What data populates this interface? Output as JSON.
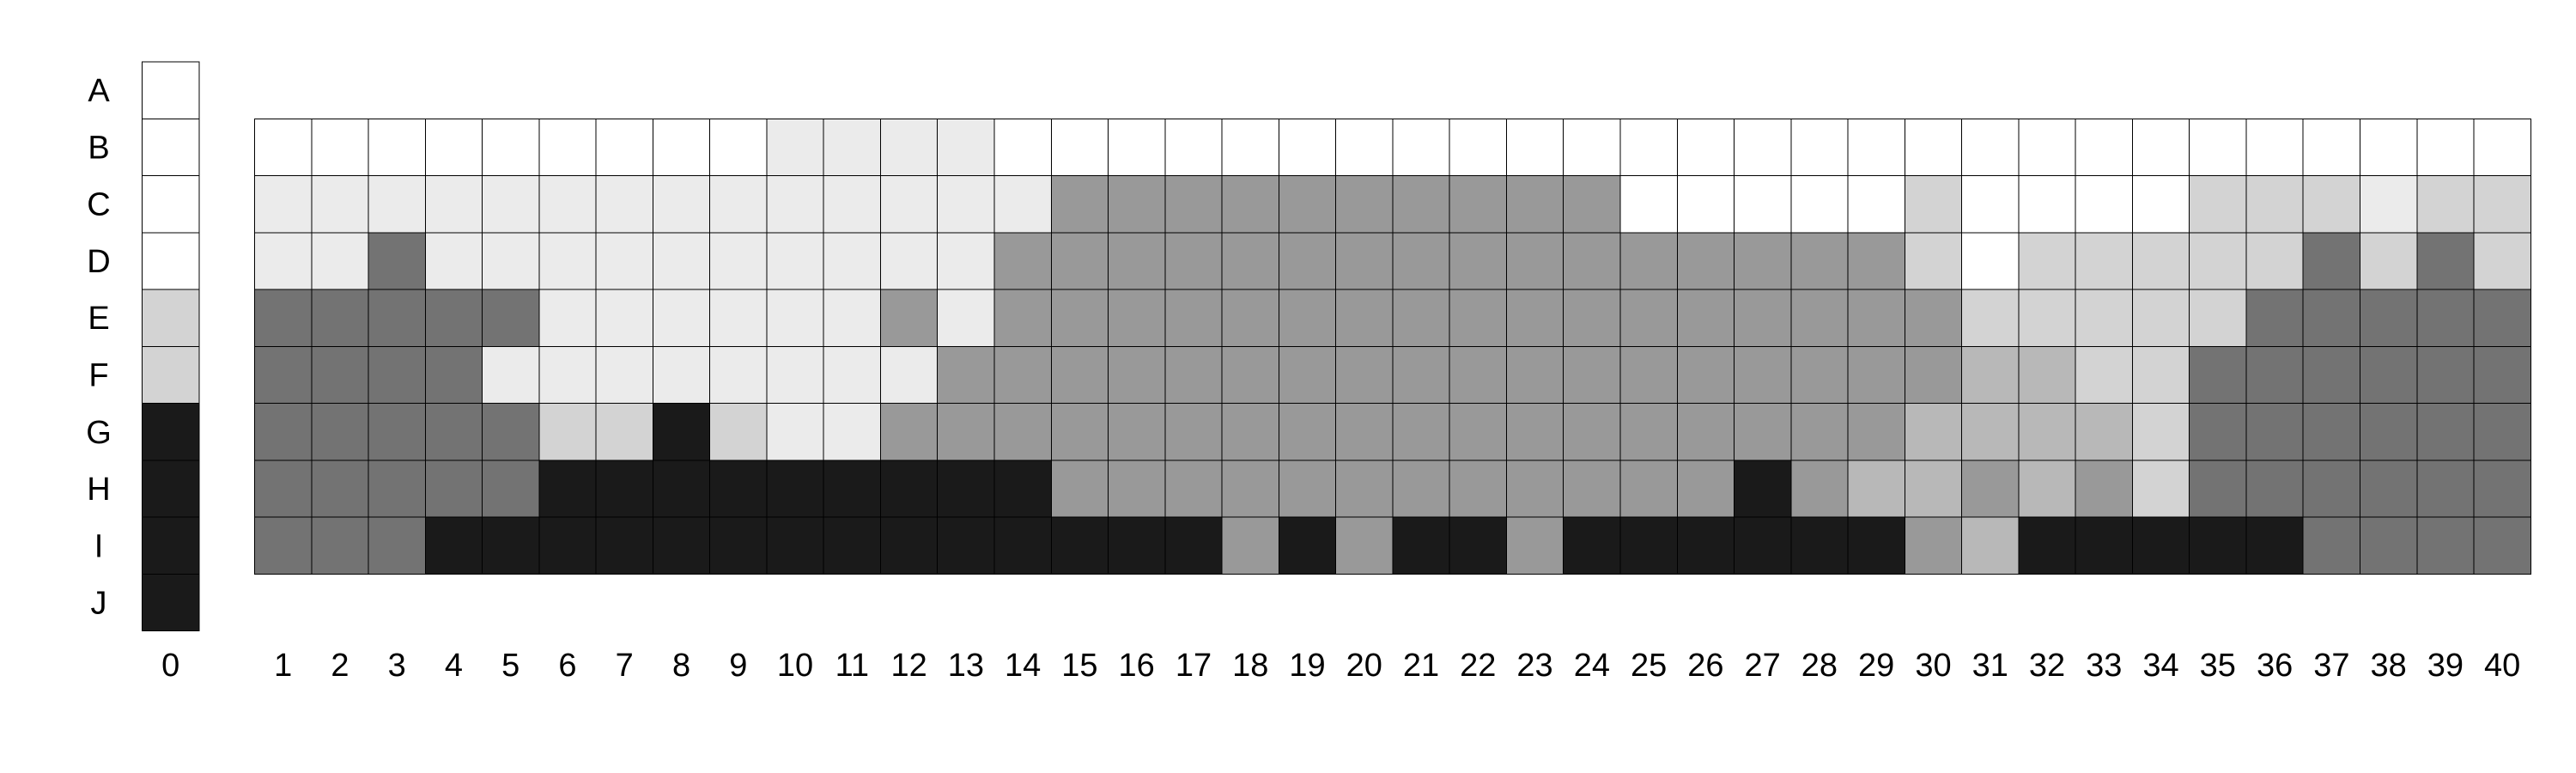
{
  "chart_data": {
    "type": "heatmap",
    "title": "",
    "row_labels": [
      "A",
      "B",
      "C",
      "D",
      "E",
      "F",
      "G",
      "H",
      "I",
      "J"
    ],
    "reference_column": {
      "label": "0",
      "values": [
        0,
        0,
        0,
        0,
        2,
        2,
        5,
        5,
        5,
        5
      ]
    },
    "column_labels": [
      "1",
      "2",
      "3",
      "4",
      "5",
      "6",
      "7",
      "8",
      "9",
      "10",
      "11",
      "12",
      "13",
      "14",
      "15",
      "16",
      "17",
      "18",
      "19",
      "20",
      "21",
      "22",
      "23",
      "24",
      "25",
      "26",
      "27",
      "28",
      "29",
      "30",
      "31",
      "32",
      "33",
      "34",
      "35",
      "36",
      "37",
      "38",
      "39",
      "40"
    ],
    "grid_rows": [
      "B",
      "C",
      "D",
      "E",
      "F",
      "G",
      "H",
      "I"
    ],
    "grid_values": [
      [
        0,
        0,
        0,
        0,
        0,
        0,
        0,
        0,
        0,
        1,
        1,
        1,
        1,
        0,
        0,
        0,
        0,
        0,
        0,
        0,
        0,
        0,
        0,
        0,
        0,
        0,
        0,
        0,
        0,
        0,
        0,
        0,
        0,
        0,
        0,
        0,
        0,
        0,
        0,
        0
      ],
      [
        1,
        1,
        1,
        1,
        1,
        1,
        1,
        1,
        1,
        1,
        1,
        1,
        1,
        1,
        3,
        3,
        3,
        3,
        3,
        3,
        3,
        3,
        3,
        3,
        0,
        0,
        0,
        0,
        0,
        2,
        0,
        0,
        0,
        0,
        2,
        2,
        2,
        1,
        2,
        2
      ],
      [
        1,
        1,
        4,
        1,
        1,
        1,
        1,
        1,
        1,
        1,
        1,
        1,
        1,
        3,
        3,
        3,
        3,
        3,
        3,
        3,
        3,
        3,
        3,
        3,
        3,
        3,
        3,
        3,
        3,
        2,
        0,
        2,
        2,
        2,
        2,
        2,
        4,
        2,
        4,
        2
      ],
      [
        4,
        4,
        4,
        4,
        4,
        1,
        1,
        1,
        1,
        1,
        1,
        3,
        1,
        3,
        3,
        3,
        3,
        3,
        3,
        3,
        3,
        3,
        3,
        3,
        3,
        3,
        3,
        3,
        3,
        3,
        2,
        2,
        2,
        2,
        2,
        4,
        4,
        4,
        4,
        4
      ],
      [
        4,
        4,
        4,
        4,
        1,
        1,
        1,
        1,
        1,
        1,
        1,
        1,
        3,
        3,
        3,
        3,
        3,
        3,
        3,
        3,
        3,
        3,
        3,
        3,
        3,
        3,
        3,
        3,
        3,
        3,
        6,
        6,
        2,
        2,
        4,
        4,
        4,
        4,
        4,
        4
      ],
      [
        4,
        4,
        4,
        4,
        4,
        2,
        2,
        5,
        2,
        1,
        1,
        3,
        3,
        3,
        3,
        3,
        3,
        3,
        3,
        3,
        3,
        3,
        3,
        3,
        3,
        3,
        3,
        3,
        3,
        6,
        6,
        6,
        6,
        2,
        4,
        4,
        4,
        4,
        4,
        4
      ],
      [
        4,
        4,
        4,
        4,
        4,
        5,
        5,
        5,
        5,
        5,
        5,
        5,
        5,
        5,
        3,
        3,
        3,
        3,
        3,
        3,
        3,
        3,
        3,
        3,
        3,
        3,
        5,
        3,
        6,
        6,
        3,
        6,
        3,
        2,
        4,
        4,
        4,
        4,
        4,
        4
      ],
      [
        4,
        4,
        4,
        5,
        5,
        5,
        5,
        5,
        5,
        5,
        5,
        5,
        5,
        5,
        5,
        5,
        5,
        3,
        5,
        3,
        5,
        5,
        3,
        5,
        5,
        5,
        5,
        5,
        5,
        3,
        6,
        5,
        5,
        5,
        5,
        5,
        4,
        4,
        4,
        4
      ]
    ],
    "palette": [
      "#ffffff",
      "#ebebeb",
      "#d3d3d3",
      "#999999",
      "#737373",
      "#1a1a1a",
      "#b8b8b8"
    ],
    "grid": true,
    "legend": "none"
  }
}
